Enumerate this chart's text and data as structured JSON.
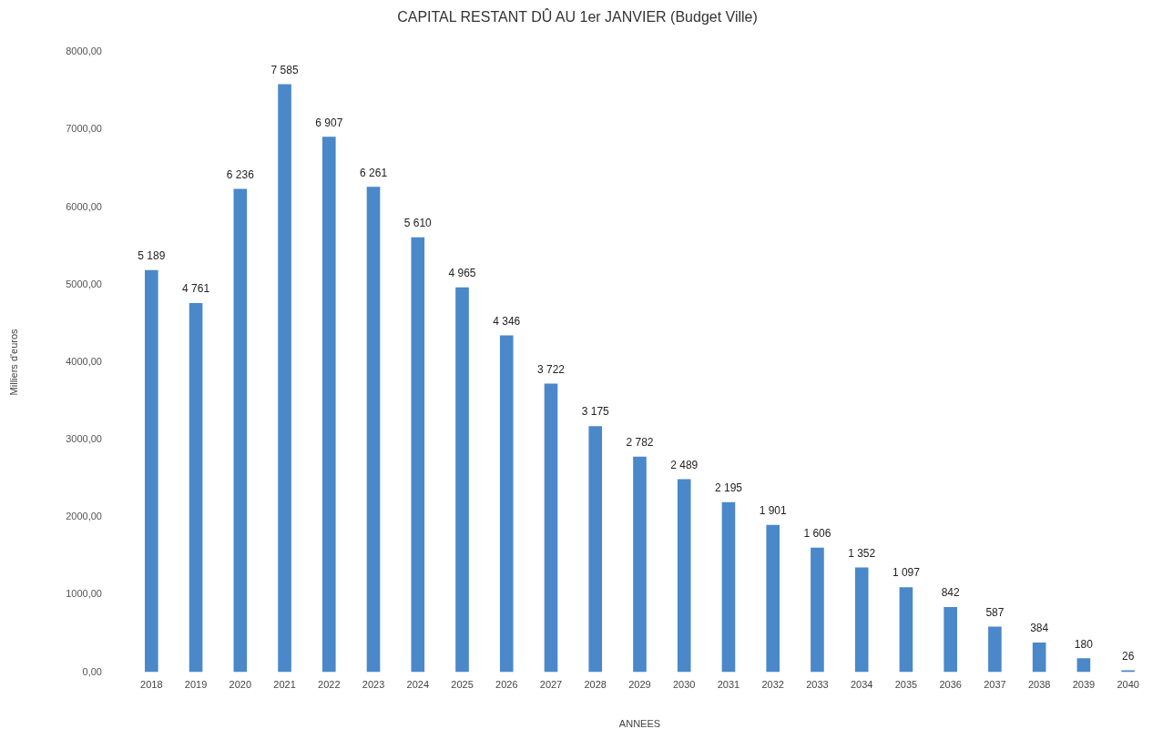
{
  "chart_data": {
    "type": "bar",
    "title": "CAPITAL RESTANT DÛ AU 1er JANVIER (Budget Ville)",
    "xlabel": "ANNEES",
    "ylabel": "Milliers d'euros",
    "categories": [
      "2018",
      "2019",
      "2020",
      "2021",
      "2022",
      "2023",
      "2024",
      "2025",
      "2026",
      "2027",
      "2028",
      "2029",
      "2030",
      "2031",
      "2032",
      "2033",
      "2034",
      "2035",
      "2036",
      "2037",
      "2038",
      "2039",
      "2040"
    ],
    "values": [
      5189,
      4761,
      6236,
      7585,
      6907,
      6261,
      5610,
      4965,
      4346,
      3722,
      3175,
      2782,
      2489,
      2195,
      1901,
      1606,
      1352,
      1097,
      842,
      587,
      384,
      180,
      26
    ],
    "value_labels": [
      "5 189",
      "4 761",
      "6 236",
      "7 585",
      "6 907",
      "6 261",
      "5 610",
      "4 965",
      "4 346",
      "3 722",
      "3 175",
      "2 782",
      "2 489",
      "2 195",
      "1 901",
      "1 606",
      "1 352",
      "1 097",
      "842",
      "587",
      "384",
      "180",
      "26"
    ],
    "color": "#4a88c9",
    "ylim": [
      0,
      8000
    ],
    "yticks": [
      {
        "value": 0,
        "label": "0,00"
      },
      {
        "value": 1000,
        "label": "1000,00"
      },
      {
        "value": 2000,
        "label": "2000,00"
      },
      {
        "value": 3000,
        "label": "3000,00"
      },
      {
        "value": 4000,
        "label": "4000,00"
      },
      {
        "value": 5000,
        "label": "5000,00"
      },
      {
        "value": 6000,
        "label": "6000,00"
      },
      {
        "value": 7000,
        "label": "7000,00"
      },
      {
        "value": 8000,
        "label": "8000,00"
      }
    ],
    "grid": false,
    "legend": false
  }
}
